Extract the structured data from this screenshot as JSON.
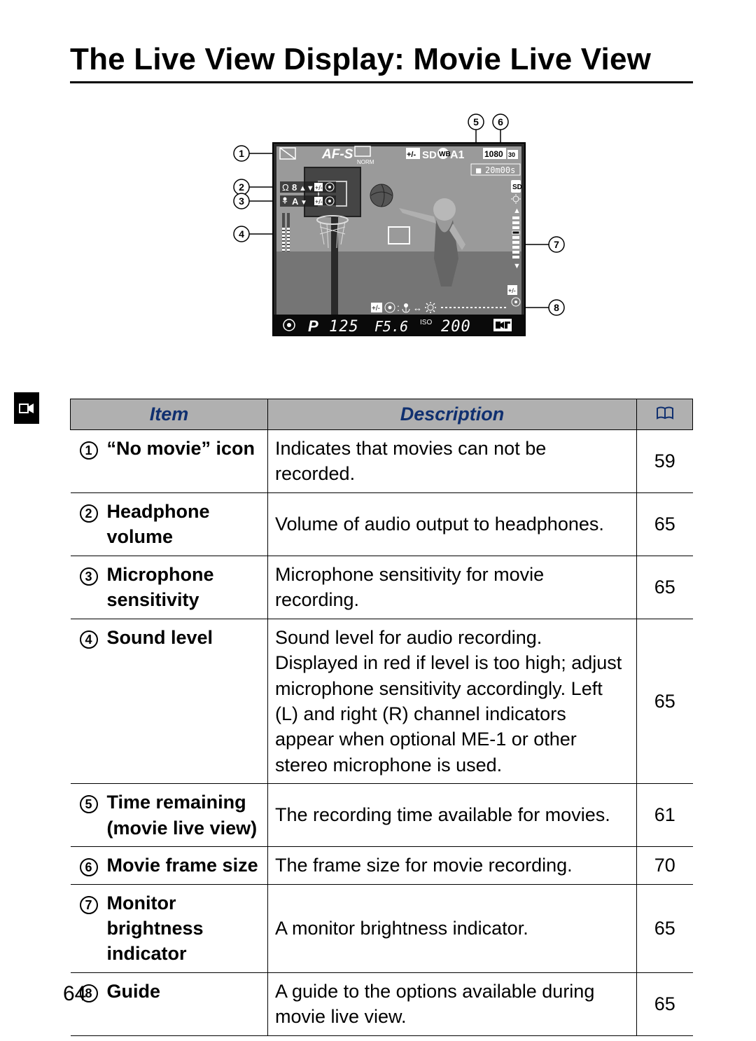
{
  "title": "The Live View Display: Movie Live View",
  "pageNumber": "64",
  "tableHeaders": {
    "item": "Item",
    "description": "Description"
  },
  "diagram": {
    "overlayText": {
      "af": "AF-S",
      "norm": "NORM",
      "sd": "SD",
      "wb": "WB",
      "a1": "A1",
      "res": "1080",
      "fps": "30",
      "time": "20m00s",
      "p": "P",
      "shutter": "125",
      "aperture": "F5.6",
      "isoLabel": "ISO",
      "iso": "200",
      "headphone": "8",
      "micAuto": "A"
    },
    "colors": {
      "screenDark": "#3a3a3a",
      "screenMid": "#808080",
      "screenLight": "#a8a8a8",
      "overlayBg": "#1a1a1a",
      "white": "#ffffff",
      "black": "#000000"
    },
    "callouts": [
      "1",
      "2",
      "3",
      "4",
      "5",
      "6",
      "7",
      "8"
    ]
  },
  "rows": [
    {
      "num": "1",
      "item": "“No movie” icon",
      "desc": "Indicates that movies can not be recorded.",
      "page": "59"
    },
    {
      "num": "2",
      "item": "Headphone volume",
      "desc": "Volume of audio output to headphones.",
      "page": "65"
    },
    {
      "num": "3",
      "item": "Microphone sensitivity",
      "desc": "Microphone sensitivity for movie recording.",
      "page": "65"
    },
    {
      "num": "4",
      "item": "Sound level",
      "desc": "Sound level for audio recording.  Displayed in red if level is too high; adjust microphone sensitivity accordingly.  Left (L) and right (R) channel indicators appear when optional ME-1 or other stereo microphone is used.",
      "page": "65"
    },
    {
      "num": "5",
      "item": "Time remaining (movie live view)",
      "desc": "The recording time available for movies.",
      "page": "61"
    },
    {
      "num": "6",
      "item": "Movie frame size",
      "desc": "The frame size for movie recording.",
      "page": "70"
    },
    {
      "num": "7",
      "item": "Monitor brightness indicator",
      "desc": "A monitor brightness indicator.",
      "page": "65"
    },
    {
      "num": "8",
      "item": "Guide",
      "desc": "A guide to the options available during movie live view.",
      "page": "65"
    }
  ]
}
